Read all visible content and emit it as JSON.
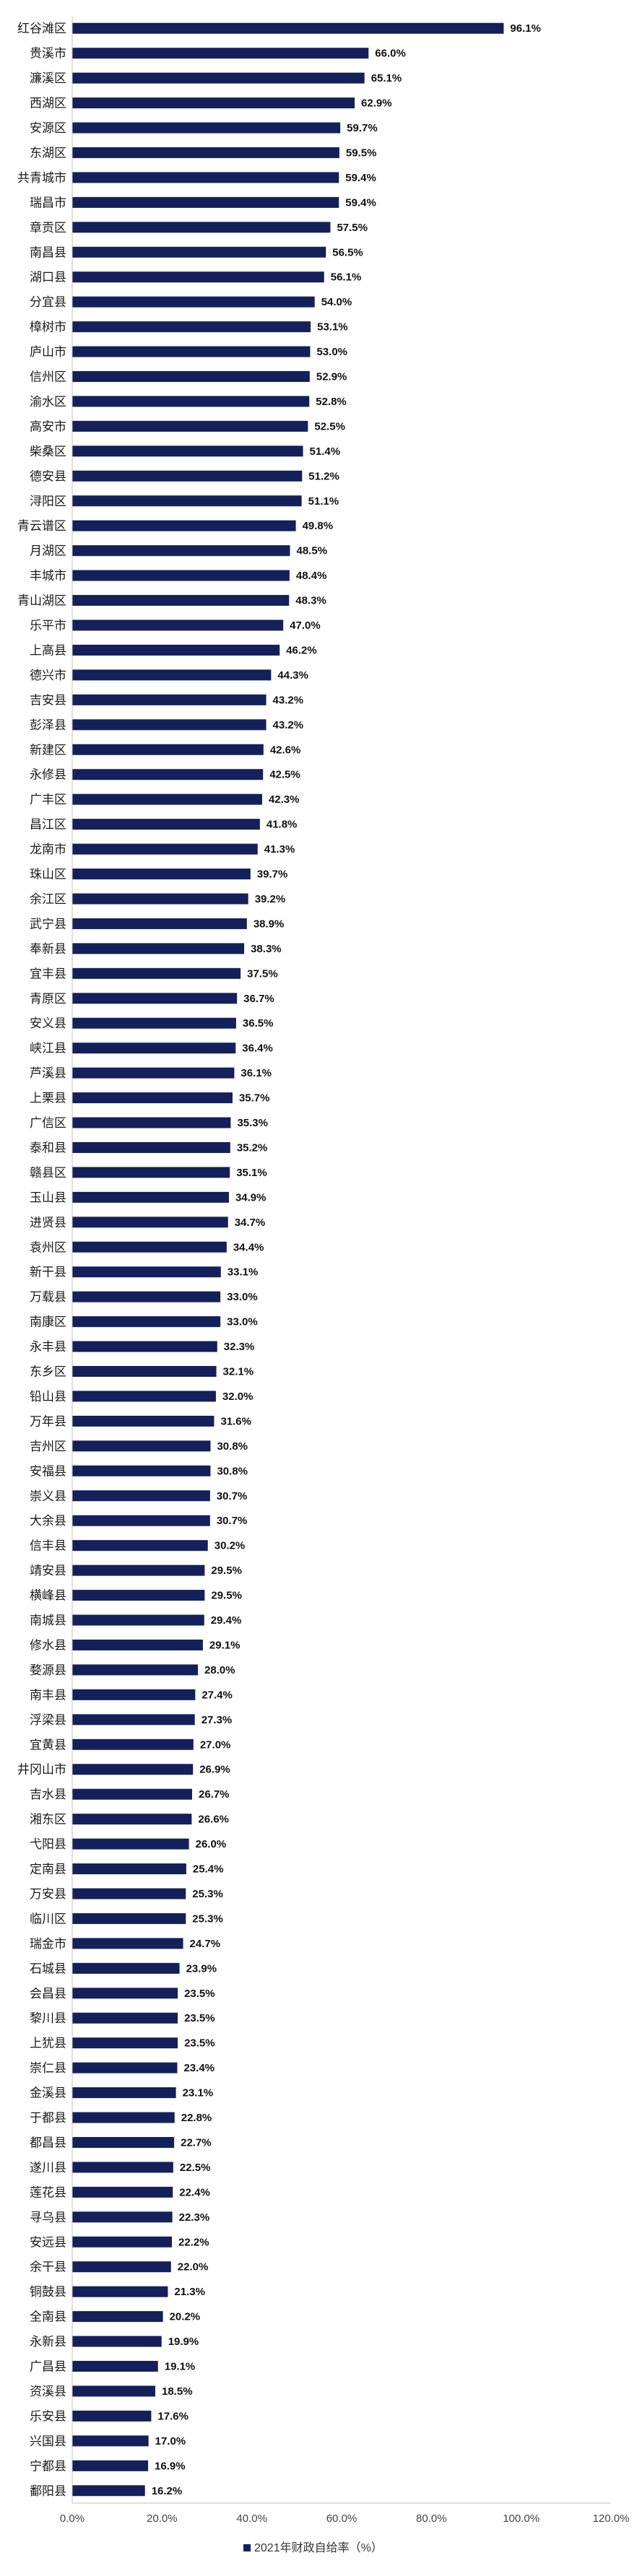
{
  "chart_data": {
    "type": "bar",
    "orientation": "horizontal",
    "bar_color": "#14205a",
    "series": [
      {
        "name": "2021年财政自给率（%）"
      }
    ],
    "categories": [
      "红谷滩区",
      "贵溪市",
      "濂溪区",
      "西湖区",
      "安源区",
      "东湖区",
      "共青城市",
      "瑞昌市",
      "章贡区",
      "南昌县",
      "湖口县",
      "分宜县",
      "樟树市",
      "庐山市",
      "信州区",
      "渝水区",
      "高安市",
      "柴桑区",
      "德安县",
      "浔阳区",
      "青云谱区",
      "月湖区",
      "丰城市",
      "青山湖区",
      "乐平市",
      "上高县",
      "德兴市",
      "吉安县",
      "彭泽县",
      "新建区",
      "永修县",
      "广丰区",
      "昌江区",
      "龙南市",
      "珠山区",
      "余江区",
      "武宁县",
      "奉新县",
      "宜丰县",
      "青原区",
      "安义县",
      "峡江县",
      "芦溪县",
      "上栗县",
      "广信区",
      "泰和县",
      "赣县区",
      "玉山县",
      "进贤县",
      "袁州区",
      "新干县",
      "万载县",
      "南康区",
      "永丰县",
      "东乡区",
      "铅山县",
      "万年县",
      "吉州区",
      "安福县",
      "崇义县",
      "大余县",
      "信丰县",
      "靖安县",
      "横峰县",
      "南城县",
      "修水县",
      "婺源县",
      "南丰县",
      "浮梁县",
      "宜黄县",
      "井冈山市",
      "吉水县",
      "湘东区",
      "弋阳县",
      "定南县",
      "万安县",
      "临川区",
      "瑞金市",
      "石城县",
      "会昌县",
      "黎川县",
      "上犹县",
      "崇仁县",
      "金溪县",
      "于都县",
      "都昌县",
      "遂川县",
      "莲花县",
      "寻乌县",
      "安远县",
      "余干县",
      "铜鼓县",
      "全南县",
      "永新县",
      "广昌县",
      "资溪县",
      "乐安县",
      "兴国县",
      "宁都县",
      "鄱阳县"
    ],
    "values": [
      96.1,
      66.0,
      65.1,
      62.9,
      59.7,
      59.5,
      59.4,
      59.4,
      57.5,
      56.5,
      56.1,
      54.0,
      53.1,
      53.0,
      52.9,
      52.8,
      52.5,
      51.4,
      51.2,
      51.1,
      49.8,
      48.5,
      48.4,
      48.3,
      47.0,
      46.2,
      44.3,
      43.2,
      43.2,
      42.6,
      42.5,
      42.3,
      41.8,
      41.3,
      39.7,
      39.2,
      38.9,
      38.3,
      37.5,
      36.7,
      36.5,
      36.4,
      36.1,
      35.7,
      35.3,
      35.2,
      35.1,
      34.9,
      34.7,
      34.4,
      33.1,
      33.0,
      33.0,
      32.3,
      32.1,
      32.0,
      31.6,
      30.8,
      30.8,
      30.7,
      30.7,
      30.2,
      29.5,
      29.5,
      29.4,
      29.1,
      28.0,
      27.4,
      27.3,
      27.0,
      26.9,
      26.7,
      26.6,
      26.0,
      25.4,
      25.3,
      25.3,
      24.7,
      23.9,
      23.5,
      23.5,
      23.5,
      23.4,
      23.1,
      22.8,
      22.7,
      22.5,
      22.4,
      22.3,
      22.2,
      22.0,
      21.3,
      20.2,
      19.9,
      19.1,
      18.5,
      17.6,
      17.0,
      16.9,
      16.2
    ],
    "value_labels": [
      "96.1%",
      "66.0%",
      "65.1%",
      "62.9%",
      "59.7%",
      "59.5%",
      "59.4%",
      "59.4%",
      "57.5%",
      "56.5%",
      "56.1%",
      "54.0%",
      "53.1%",
      "53.0%",
      "52.9%",
      "52.8%",
      "52.5%",
      "51.4%",
      "51.2%",
      "51.1%",
      "49.8%",
      "48.5%",
      "48.4%",
      "48.3%",
      "47.0%",
      "46.2%",
      "44.3%",
      "43.2%",
      "43.2%",
      "42.6%",
      "42.5%",
      "42.3%",
      "41.8%",
      "41.3%",
      "39.7%",
      "39.2%",
      "38.9%",
      "38.3%",
      "37.5%",
      "36.7%",
      "36.5%",
      "36.4%",
      "36.1%",
      "35.7%",
      "35.3%",
      "35.2%",
      "35.1%",
      "34.9%",
      "34.7%",
      "34.4%",
      "33.1%",
      "33.0%",
      "33.0%",
      "32.3%",
      "32.1%",
      "32.0%",
      "31.6%",
      "30.8%",
      "30.8%",
      "30.7%",
      "30.7%",
      "30.2%",
      "29.5%",
      "29.5%",
      "29.4%",
      "29.1%",
      "28.0%",
      "27.4%",
      "27.3%",
      "27.0%",
      "26.9%",
      "26.7%",
      "26.6%",
      "26.0%",
      "25.4%",
      "25.3%",
      "25.3%",
      "24.7%",
      "23.9%",
      "23.5%",
      "23.5%",
      "23.5%",
      "23.4%",
      "23.1%",
      "22.8%",
      "22.7%",
      "22.5%",
      "22.4%",
      "22.3%",
      "22.2%",
      "22.0%",
      "21.3%",
      "20.2%",
      "19.9%",
      "19.1%",
      "18.5%",
      "17.6%",
      "17.0%",
      "16.9%",
      "16.2%"
    ],
    "x_ticks": [
      0,
      20,
      40,
      60,
      80,
      100,
      120
    ],
    "x_tick_labels": [
      "0.0%",
      "20.0%",
      "40.0%",
      "60.0%",
      "80.0%",
      "100.0%",
      "120.0%"
    ],
    "xlim": [
      0,
      120
    ],
    "title": "",
    "xlabel": "",
    "ylabel": "",
    "legend": {
      "position": "bottom",
      "label": "2021年财政自给率（%）"
    },
    "grid": false
  }
}
